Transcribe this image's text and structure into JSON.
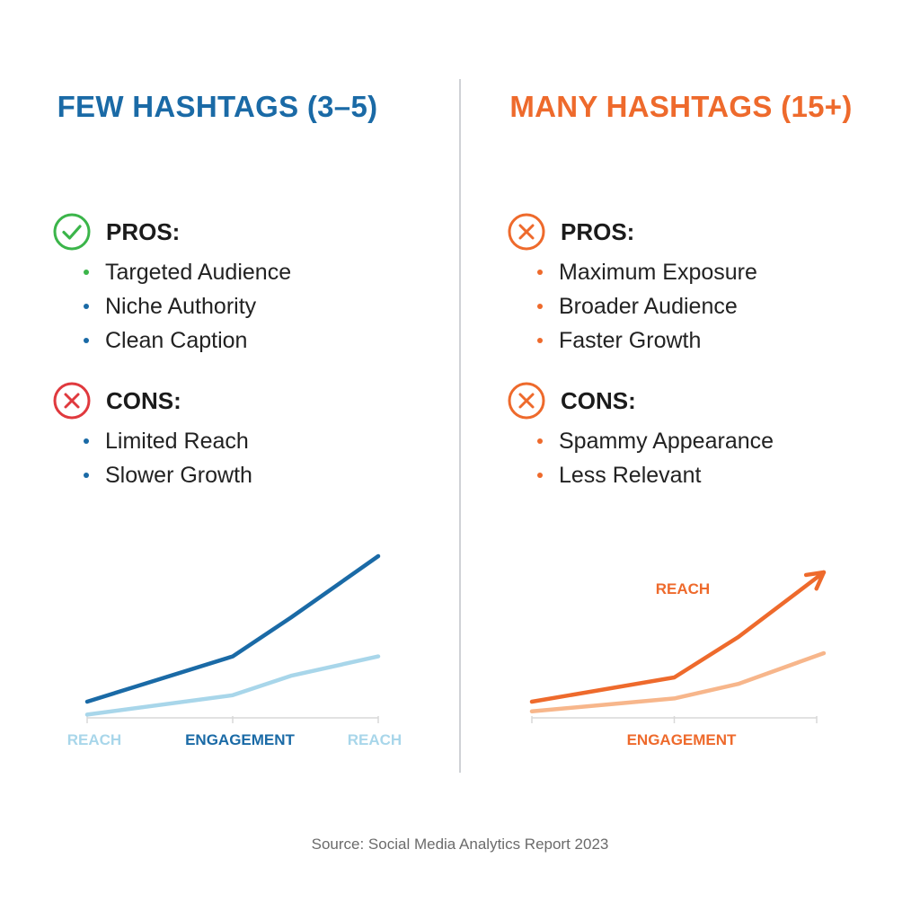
{
  "colors": {
    "blue_dark": "#1a6aa6",
    "blue_light": "#a8d6ea",
    "orange_dark": "#ee6a2c",
    "orange_light": "#f7b68b",
    "green": "#3bb54a",
    "red": "#e0393e",
    "axis": "#d8d8d8"
  },
  "left": {
    "title": "FEW HASHTAGS (3–5)",
    "pros": {
      "label": "PROS:",
      "icon": "check-circle-icon",
      "items": [
        "Targeted Audience",
        "Niche Authority",
        "Clean Caption"
      ]
    },
    "cons": {
      "label": "CONS:",
      "icon": "x-circle-icon",
      "items": [
        "Limited Reach",
        "Slower Growth"
      ]
    }
  },
  "right": {
    "title": "MANY HASHTAGS (15+)",
    "pros": {
      "label": "PROS:",
      "icon": "x-circle-icon",
      "items": [
        "Maximum Exposure",
        "Broader Audience",
        "Faster Growth"
      ]
    },
    "cons": {
      "label": "CONS:",
      "icon": "x-circle-icon",
      "items": [
        "Spammy Appearance",
        "Less Relevant"
      ]
    }
  },
  "chart_data": [
    {
      "type": "line",
      "x": [
        0,
        1,
        1.4,
        2
      ],
      "series": [
        {
          "values": [
            10,
            38,
            62,
            100
          ],
          "color": "#1a6aa6"
        },
        {
          "values": [
            2,
            14,
            26,
            38
          ],
          "color": "#a8d6ea"
        }
      ],
      "tick_labels": [
        "REACH",
        "ENGAGEMENT",
        "REACH"
      ],
      "ylim": [
        0,
        110
      ],
      "grid": false
    },
    {
      "type": "line",
      "x": [
        0,
        1,
        1.45,
        2.05
      ],
      "series": [
        {
          "values": [
            10,
            25,
            50,
            90
          ],
          "color": "#ee6a2c",
          "arrow": true
        },
        {
          "values": [
            4,
            12,
            21,
            40
          ],
          "color": "#f7b68b"
        }
      ],
      "tick_labels": [
        "",
        "ENGAGEMENT",
        ""
      ],
      "annotations": [
        "REACH"
      ],
      "ylim": [
        0,
        110
      ],
      "grid": false
    }
  ],
  "source": "Source: Social Media Analytics Report 2023"
}
